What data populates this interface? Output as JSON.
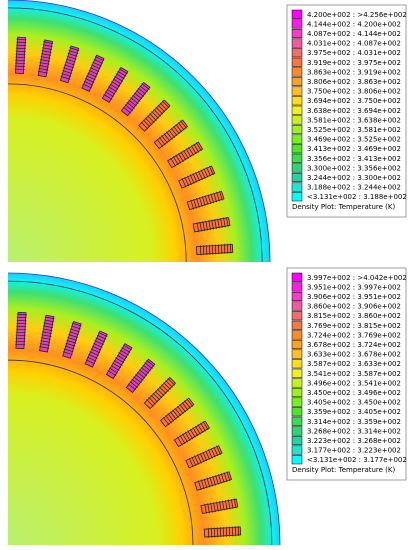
{
  "panels": [
    {
      "legend": {
        "entries": [
          {
            "label": "4.200e+002 : >4.256e+002",
            "color": "#ff00ff"
          },
          {
            "label": "4.144e+002 : 4.200e+002",
            "color": "#f81ee6"
          },
          {
            "label": "4.087e+002 : 4.144e+002",
            "color": "#f43cc8"
          },
          {
            "label": "4.031e+002 : 4.087e+002",
            "color": "#f05aa0"
          },
          {
            "label": "3.975e+002 : 4.031e+002",
            "color": "#f06e6e"
          },
          {
            "label": "3.919e+002 : 3.975e+002",
            "color": "#f47846"
          },
          {
            "label": "3.863e+002 : 3.919e+002",
            "color": "#f88c28"
          },
          {
            "label": "3.806e+002 : 3.863e+002",
            "color": "#fca028"
          },
          {
            "label": "3.750e+002 : 3.806e+002",
            "color": "#ffbe28"
          },
          {
            "label": "3.694e+002 : 3.750e+002",
            "color": "#ffdc1e"
          },
          {
            "label": "3.638e+002 : 3.694e+002",
            "color": "#f0f01e"
          },
          {
            "label": "3.581e+002 : 3.638e+002",
            "color": "#c8f01e"
          },
          {
            "label": "3.525e+002 : 3.581e+002",
            "color": "#a0f01e"
          },
          {
            "label": "3.469e+002 : 3.525e+002",
            "color": "#78f01e"
          },
          {
            "label": "3.413e+002 : 3.469e+002",
            "color": "#50e628"
          },
          {
            "label": "3.356e+002 : 3.413e+002",
            "color": "#3cdc50"
          },
          {
            "label": "3.300e+002 : 3.356e+002",
            "color": "#32d278"
          },
          {
            "label": "3.244e+002 : 3.300e+002",
            "color": "#28d2a0"
          },
          {
            "label": "3.188e+002 : 3.244e+002",
            "color": "#1ee6d2"
          },
          {
            "label": "<3.131e+002 : 3.188e+002",
            "color": "#00ffff"
          }
        ],
        "title": "Density Plot: Temperature (K)"
      }
    },
    {
      "legend": {
        "entries": [
          {
            "label": "3.997e+002 : >4.042e+002",
            "color": "#ff00ff"
          },
          {
            "label": "3.951e+002 : 3.997e+002",
            "color": "#f81ee6"
          },
          {
            "label": "3.906e+002 : 3.951e+002",
            "color": "#f43cc8"
          },
          {
            "label": "3.860e+002 : 3.906e+002",
            "color": "#f05aa0"
          },
          {
            "label": "3.815e+002 : 3.860e+002",
            "color": "#f06e6e"
          },
          {
            "label": "3.769e+002 : 3.815e+002",
            "color": "#f47846"
          },
          {
            "label": "3.724e+002 : 3.769e+002",
            "color": "#f88c28"
          },
          {
            "label": "3.678e+002 : 3.724e+002",
            "color": "#fca028"
          },
          {
            "label": "3.633e+002 : 3.678e+002",
            "color": "#ffbe28"
          },
          {
            "label": "3.587e+002 : 3.633e+002",
            "color": "#ffdc1e"
          },
          {
            "label": "3.541e+002 : 3.587e+002",
            "color": "#f0f01e"
          },
          {
            "label": "3.496e+002 : 3.541e+002",
            "color": "#c8f01e"
          },
          {
            "label": "3.450e+002 : 3.496e+002",
            "color": "#a0f01e"
          },
          {
            "label": "3.405e+002 : 3.450e+002",
            "color": "#78f01e"
          },
          {
            "label": "3.359e+002 : 3.405e+002",
            "color": "#50e628"
          },
          {
            "label": "3.314e+002 : 3.359e+002",
            "color": "#3cdc50"
          },
          {
            "label": "3.268e+002 : 3.314e+002",
            "color": "#32d278"
          },
          {
            "label": "3.223e+002 : 3.268e+002",
            "color": "#28d2a0"
          },
          {
            "label": "3.177e+002 : 3.223e+002",
            "color": "#1ee6d2"
          },
          {
            "label": "<3.131e+002 : 3.177e+002",
            "color": "#00ffff"
          }
        ],
        "title": "Density Plot: Temperature (K)"
      }
    }
  ]
}
